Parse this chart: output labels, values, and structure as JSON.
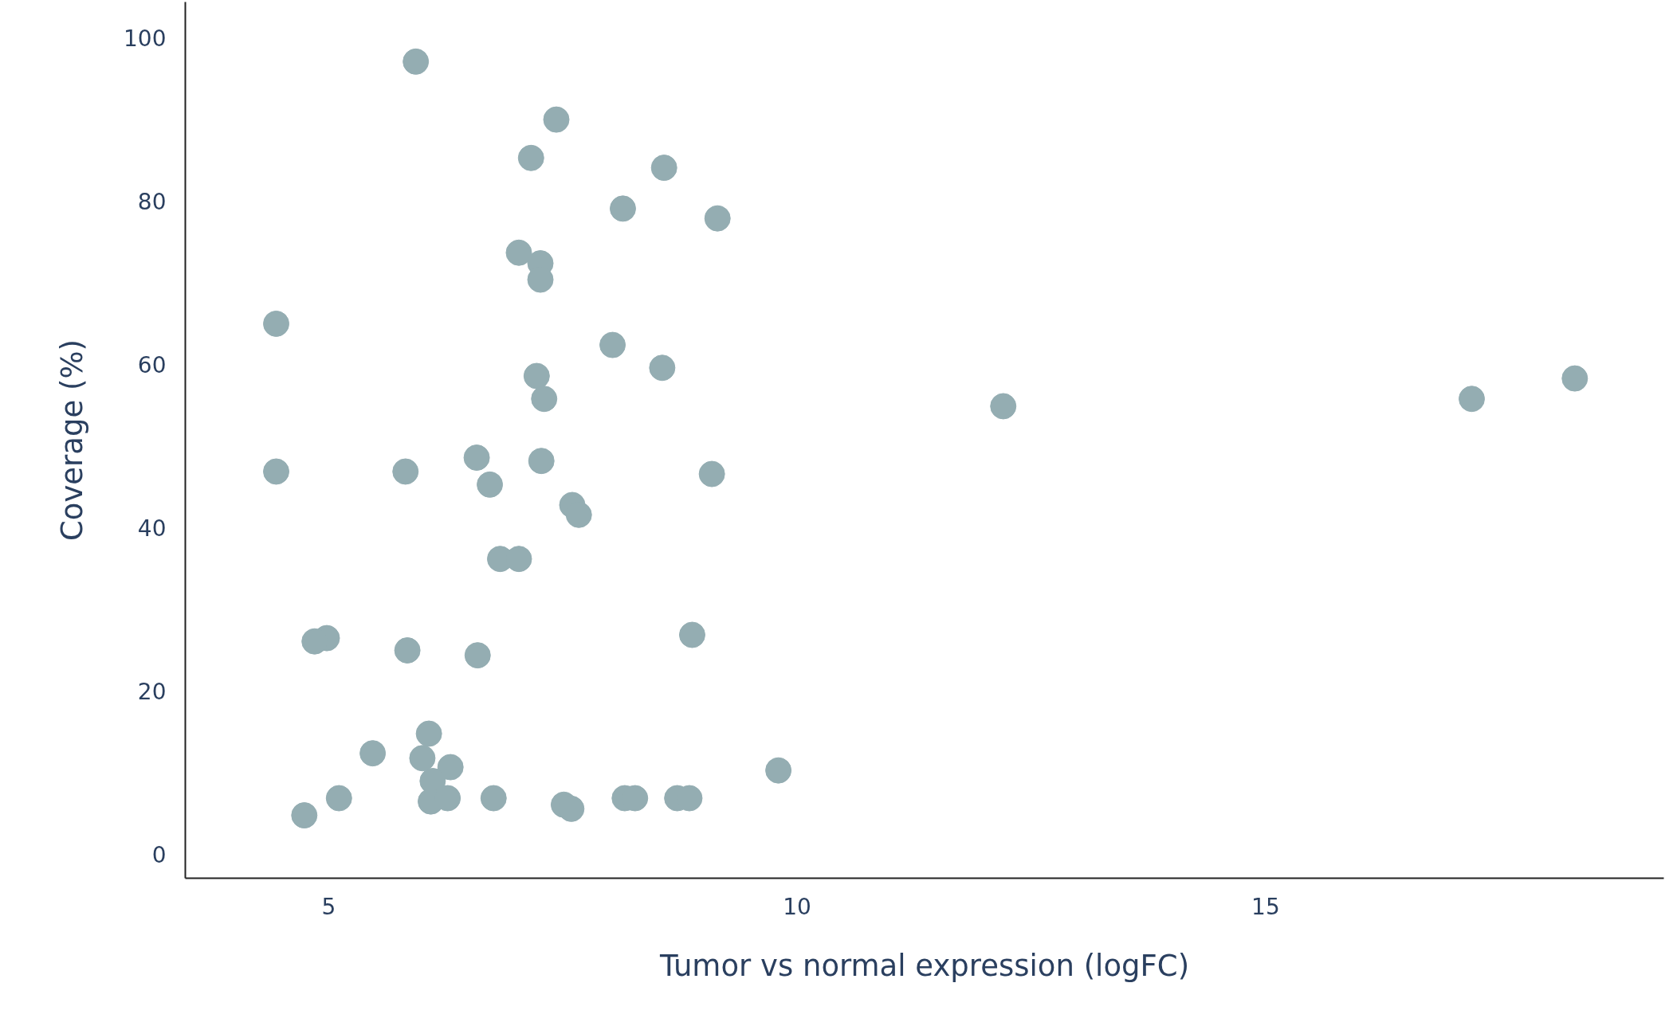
{
  "chart_data": {
    "type": "scatter",
    "xlabel": "Tumor vs normal expression (logFC)",
    "ylabel": "Coverage (%)",
    "xlim": [
      3.47,
      19.25
    ],
    "ylim": [
      -2.9,
      104.4
    ],
    "xticks": [
      5,
      10,
      15
    ],
    "yticks": [
      0,
      20,
      40,
      60,
      80,
      100
    ],
    "grid": false,
    "series": [
      {
        "color": "#94adb2",
        "x": [
          5.93,
          7.43,
          7.16,
          8.58,
          8.14,
          9.15,
          7.03,
          7.26,
          7.26,
          4.44,
          8.03,
          8.56,
          7.22,
          18.3,
          7.3,
          17.2,
          12.2,
          6.58,
          7.27,
          4.44,
          5.82,
          9.09,
          6.72,
          7.6,
          7.67,
          6.83,
          7.03,
          8.88,
          4.98,
          4.85,
          5.84,
          6.59,
          6.07,
          5.47,
          6.0,
          6.3,
          9.8,
          6.11,
          6.09,
          6.27,
          5.11,
          6.76,
          8.16,
          8.27,
          8.72,
          8.85,
          7.51,
          7.59,
          4.74
        ],
        "values": [
          97.1,
          90.0,
          85.3,
          84.1,
          79.1,
          77.9,
          73.7,
          72.4,
          70.4,
          65.0,
          62.4,
          59.6,
          58.6,
          58.3,
          55.8,
          55.8,
          54.9,
          48.6,
          48.2,
          46.9,
          46.9,
          46.6,
          45.3,
          42.8,
          41.6,
          36.2,
          36.2,
          26.9,
          26.5,
          26.1,
          25.0,
          24.4,
          14.8,
          12.4,
          11.8,
          10.7,
          10.3,
          9.0,
          6.5,
          6.9,
          6.9,
          6.9,
          6.9,
          6.9,
          6.9,
          6.9,
          6.1,
          5.6,
          4.8
        ]
      }
    ]
  }
}
